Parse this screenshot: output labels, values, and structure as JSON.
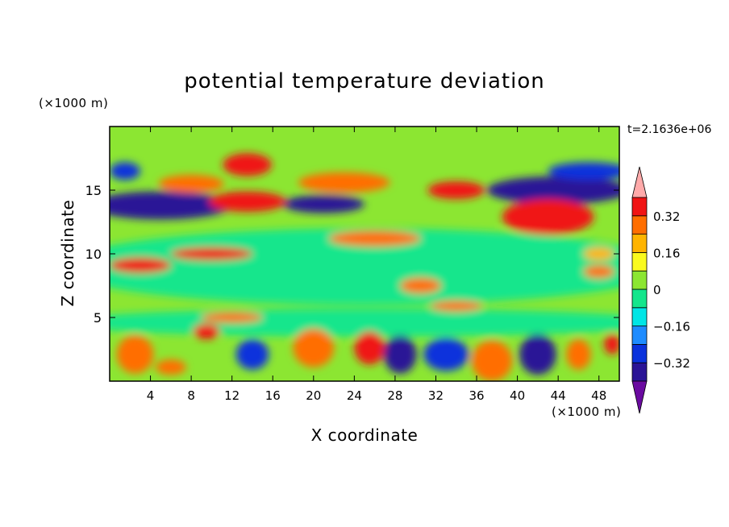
{
  "chart_data": {
    "type": "heatmap",
    "title": "potential temperature deviation",
    "xlabel": "X coordinate",
    "ylabel": "Z coordinate",
    "x_unit": "(×1000 m)",
    "y_unit": "(×1000 m)",
    "time_label": "t=2.1636e+06",
    "xlim": [
      0,
      50
    ],
    "ylim": [
      0,
      20
    ],
    "x_ticks": [
      4,
      8,
      12,
      16,
      20,
      24,
      28,
      32,
      36,
      40,
      44,
      48
    ],
    "y_ticks": [
      5,
      10,
      15
    ],
    "colorbar": {
      "levels": [
        -0.4,
        -0.32,
        -0.24,
        -0.16,
        -0.08,
        0,
        0.08,
        0.16,
        0.24,
        0.32,
        0.4
      ],
      "tick_values": [
        0.32,
        0.16,
        0,
        -0.16,
        -0.32
      ],
      "tick_labels": [
        "0.32",
        "0.16",
        "0",
        "−0.16",
        "−0.32"
      ],
      "colors": [
        "#6a0aa0",
        "#2a1496",
        "#0a32dc",
        "#1e8cff",
        "#00e6e6",
        "#14e68c",
        "#8ce632",
        "#fafa1e",
        "#ffb400",
        "#ff6e00",
        "#f01414",
        "#ffaaaa"
      ],
      "extend": "both"
    },
    "features": [
      {
        "x": 25,
        "y": 9,
        "rx": 30,
        "ry": 3,
        "value": -0.08
      },
      {
        "x": 25,
        "y": 4.6,
        "rx": 30,
        "ry": 1.1,
        "value": -0.08
      },
      {
        "x": 5,
        "y": 13.8,
        "rx": 7,
        "ry": 1.1,
        "value": -0.35
      },
      {
        "x": 21,
        "y": 13.9,
        "rx": 4,
        "ry": 0.7,
        "value": -0.35
      },
      {
        "x": 44,
        "y": 15,
        "rx": 7,
        "ry": 1.1,
        "value": -0.35
      },
      {
        "x": 47,
        "y": 16.5,
        "rx": 4,
        "ry": 0.7,
        "value": -0.3
      },
      {
        "x": 1.5,
        "y": 16.5,
        "rx": 1.5,
        "ry": 0.7,
        "value": -0.3
      },
      {
        "x": 13.5,
        "y": 17,
        "rx": 2.4,
        "ry": 0.9,
        "value": 0.36
      },
      {
        "x": 13.5,
        "y": 14.1,
        "rx": 3.8,
        "ry": 0.8,
        "value": 0.36
      },
      {
        "x": 8,
        "y": 15.5,
        "rx": 3.2,
        "ry": 0.7,
        "value": 0.3
      },
      {
        "x": 23,
        "y": 15.6,
        "rx": 4.5,
        "ry": 0.8,
        "value": 0.25
      },
      {
        "x": 34,
        "y": 15,
        "rx": 2.8,
        "ry": 0.7,
        "value": 0.36
      },
      {
        "x": 43,
        "y": 12.9,
        "rx": 4.5,
        "ry": 1.4,
        "value": 0.36
      },
      {
        "x": 3,
        "y": 9.1,
        "rx": 3,
        "ry": 0.6,
        "value": 0.36
      },
      {
        "x": 10,
        "y": 10,
        "rx": 4,
        "ry": 0.5,
        "value": 0.36
      },
      {
        "x": 26,
        "y": 11.2,
        "rx": 4.5,
        "ry": 0.6,
        "value": 0.3
      },
      {
        "x": 30.5,
        "y": 7.5,
        "rx": 2,
        "ry": 0.6,
        "value": 0.3
      },
      {
        "x": 48,
        "y": 8.6,
        "rx": 1.5,
        "ry": 0.5,
        "value": 0.3
      },
      {
        "x": 48,
        "y": 10,
        "rx": 1.5,
        "ry": 0.5,
        "value": 0.2
      },
      {
        "x": 12,
        "y": 5,
        "rx": 3,
        "ry": 0.4,
        "value": 0.3
      },
      {
        "x": 34,
        "y": 5.9,
        "rx": 2.5,
        "ry": 0.4,
        "value": 0.25
      },
      {
        "x": 9.5,
        "y": 3.9,
        "rx": 1.3,
        "ry": 0.6,
        "value": 0.36
      },
      {
        "x": 2.5,
        "y": 2.1,
        "rx": 1.8,
        "ry": 1.5,
        "value": 0.3
      },
      {
        "x": 6,
        "y": 1.1,
        "rx": 1.5,
        "ry": 0.6,
        "value": 0.3
      },
      {
        "x": 14,
        "y": 2.1,
        "rx": 1.6,
        "ry": 1.2,
        "value": -0.3
      },
      {
        "x": 20,
        "y": 2.6,
        "rx": 2,
        "ry": 1.5,
        "value": 0.3
      },
      {
        "x": 25.5,
        "y": 2.6,
        "rx": 1.5,
        "ry": 1.3,
        "value": 0.36
      },
      {
        "x": 28.5,
        "y": 2.1,
        "rx": 1.6,
        "ry": 1.5,
        "value": -0.35
      },
      {
        "x": 33,
        "y": 2.1,
        "rx": 2.2,
        "ry": 1.3,
        "value": -0.3
      },
      {
        "x": 37.5,
        "y": 1.6,
        "rx": 2,
        "ry": 1.6,
        "value": 0.3
      },
      {
        "x": 42,
        "y": 2.1,
        "rx": 1.8,
        "ry": 1.6,
        "value": -0.4
      },
      {
        "x": 46,
        "y": 2.1,
        "rx": 1.2,
        "ry": 1.2,
        "value": 0.25
      },
      {
        "x": 49.3,
        "y": 2.9,
        "rx": 0.8,
        "ry": 0.8,
        "value": 0.36
      }
    ]
  }
}
